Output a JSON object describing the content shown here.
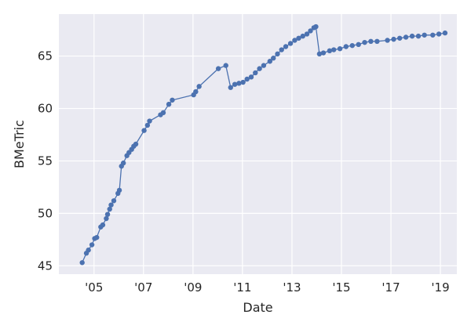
{
  "chart_data": {
    "type": "line",
    "title": "",
    "xlabel": "Date",
    "ylabel": "BMeTric",
    "grid": true,
    "legend": "none",
    "colors": {
      "background": "#EAEAF2",
      "grid": "#FFFFFF",
      "series": "#4C72B0",
      "text": "#262626"
    },
    "xlim": [
      "2003-08-01",
      "2019-09-01"
    ],
    "ylim": [
      44.2,
      69.0
    ],
    "x_ticks": [
      {
        "date": "2005-01-01",
        "label": "'05"
      },
      {
        "date": "2007-01-01",
        "label": "'07"
      },
      {
        "date": "2009-01-01",
        "label": "'09"
      },
      {
        "date": "2011-01-01",
        "label": "'11"
      },
      {
        "date": "2013-01-01",
        "label": "'13"
      },
      {
        "date": "2015-01-01",
        "label": "'15"
      },
      {
        "date": "2017-01-01",
        "label": "'17"
      },
      {
        "date": "2019-01-01",
        "label": "'19"
      }
    ],
    "y_ticks": [
      {
        "value": 45,
        "label": "45"
      },
      {
        "value": 50,
        "label": "50"
      },
      {
        "value": 55,
        "label": "55"
      },
      {
        "value": 60,
        "label": "60"
      },
      {
        "value": 65,
        "label": "65"
      }
    ],
    "series": [
      {
        "name": "",
        "points": [
          [
            "2004-07-10",
            45.3
          ],
          [
            "2004-09-10",
            46.2
          ],
          [
            "2004-10-10",
            46.5
          ],
          [
            "2004-12-01",
            47.0
          ],
          [
            "2005-01-10",
            47.6
          ],
          [
            "2005-02-10",
            47.7
          ],
          [
            "2005-04-10",
            48.7
          ],
          [
            "2005-05-10",
            48.9
          ],
          [
            "2005-07-01",
            49.5
          ],
          [
            "2005-07-20",
            49.9
          ],
          [
            "2005-08-20",
            50.4
          ],
          [
            "2005-09-10",
            50.8
          ],
          [
            "2005-10-20",
            51.2
          ],
          [
            "2005-12-20",
            51.9
          ],
          [
            "2006-01-10",
            52.2
          ],
          [
            "2006-02-10",
            54.5
          ],
          [
            "2006-03-10",
            54.8
          ],
          [
            "2006-05-01",
            55.5
          ],
          [
            "2006-06-01",
            55.8
          ],
          [
            "2006-07-10",
            56.1
          ],
          [
            "2006-08-10",
            56.4
          ],
          [
            "2006-09-10",
            56.6
          ],
          [
            "2007-01-10",
            57.9
          ],
          [
            "2007-03-01",
            58.4
          ],
          [
            "2007-04-01",
            58.8
          ],
          [
            "2007-09-10",
            59.4
          ],
          [
            "2007-10-20",
            59.6
          ],
          [
            "2008-01-10",
            60.4
          ],
          [
            "2008-03-01",
            60.8
          ],
          [
            "2009-01-10",
            61.3
          ],
          [
            "2009-02-10",
            61.6
          ],
          [
            "2009-04-01",
            62.1
          ],
          [
            "2010-01-10",
            63.8
          ],
          [
            "2010-05-01",
            64.1
          ],
          [
            "2010-07-10",
            62.0
          ],
          [
            "2010-09-10",
            62.3
          ],
          [
            "2010-11-10",
            62.4
          ],
          [
            "2011-01-10",
            62.5
          ],
          [
            "2011-03-10",
            62.8
          ],
          [
            "2011-05-10",
            63.0
          ],
          [
            "2011-07-10",
            63.4
          ],
          [
            "2011-09-10",
            63.8
          ],
          [
            "2011-11-10",
            64.1
          ],
          [
            "2012-02-10",
            64.5
          ],
          [
            "2012-04-01",
            64.8
          ],
          [
            "2012-06-01",
            65.2
          ],
          [
            "2012-08-01",
            65.6
          ],
          [
            "2012-10-01",
            65.9
          ],
          [
            "2012-12-10",
            66.2
          ],
          [
            "2013-02-10",
            66.5
          ],
          [
            "2013-04-10",
            66.7
          ],
          [
            "2013-06-10",
            66.9
          ],
          [
            "2013-08-10",
            67.1
          ],
          [
            "2013-10-01",
            67.4
          ],
          [
            "2013-11-20",
            67.7
          ],
          [
            "2013-12-20",
            67.8
          ],
          [
            "2014-02-10",
            65.2
          ],
          [
            "2014-04-10",
            65.3
          ],
          [
            "2014-07-10",
            65.5
          ],
          [
            "2014-09-10",
            65.6
          ],
          [
            "2014-12-10",
            65.7
          ],
          [
            "2015-03-10",
            65.9
          ],
          [
            "2015-06-10",
            66.0
          ],
          [
            "2015-09-10",
            66.1
          ],
          [
            "2015-12-10",
            66.3
          ],
          [
            "2016-03-10",
            66.4
          ],
          [
            "2016-06-10",
            66.4
          ],
          [
            "2016-11-10",
            66.5
          ],
          [
            "2017-02-10",
            66.6
          ],
          [
            "2017-05-10",
            66.7
          ],
          [
            "2017-08-10",
            66.8
          ],
          [
            "2017-11-10",
            66.9
          ],
          [
            "2018-02-10",
            66.9
          ],
          [
            "2018-05-10",
            67.0
          ],
          [
            "2018-09-10",
            67.0
          ],
          [
            "2018-12-10",
            67.1
          ],
          [
            "2019-03-10",
            67.2
          ]
        ]
      }
    ]
  }
}
